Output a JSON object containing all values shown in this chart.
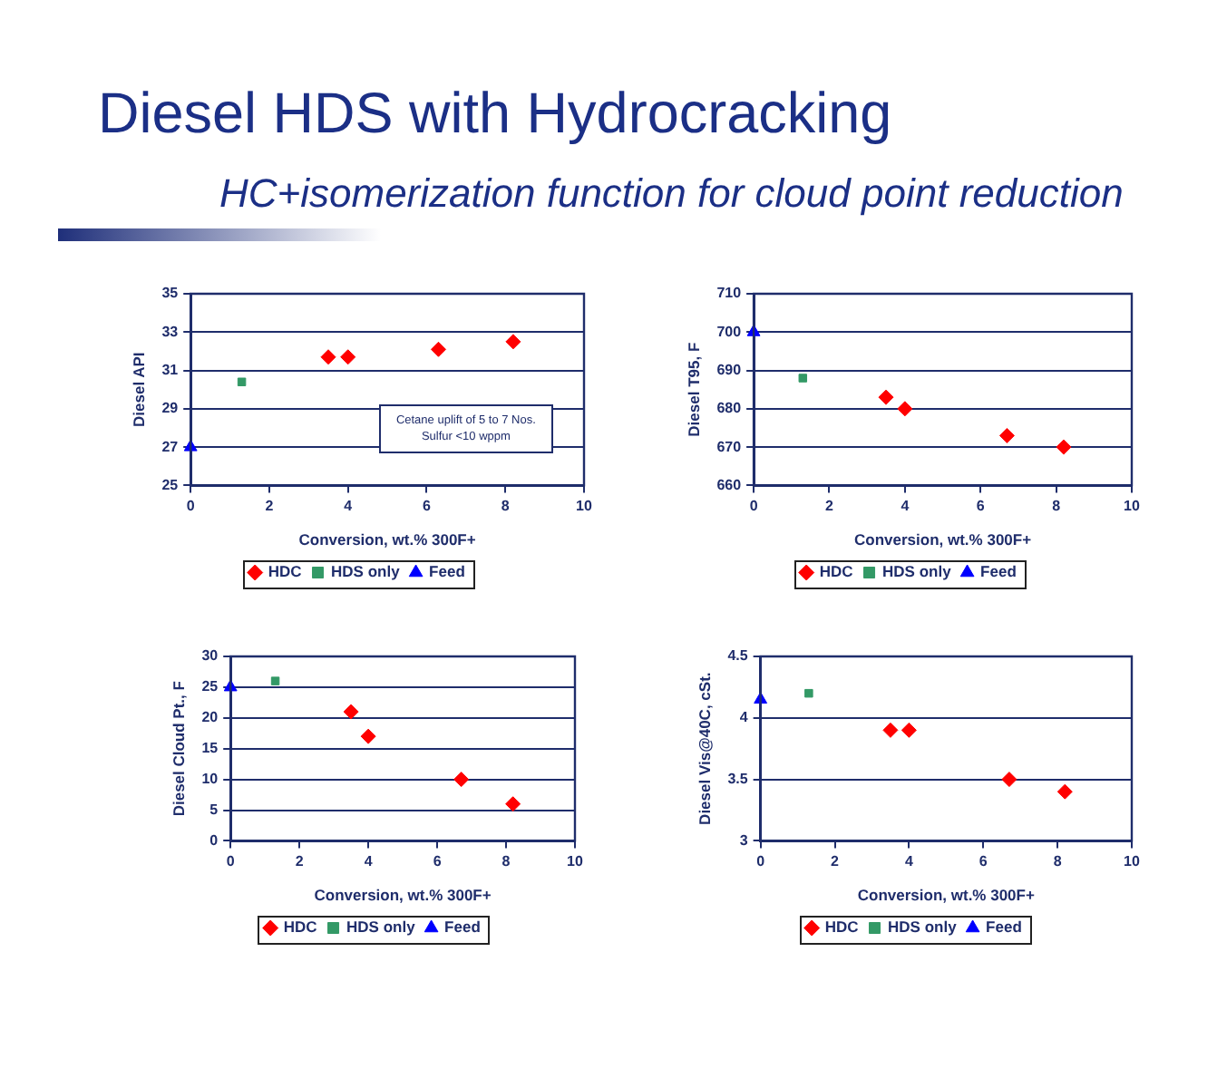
{
  "chart_data": [
    {
      "type": "other",
      "title": "Diesel HDS with Hydrocracking",
      "subtitle": "HC+isomerization function for cloud point reduction"
    },
    {
      "type": "scatter",
      "xlabel": "Conversion, wt.% 300F+",
      "ylabel": "Diesel API",
      "xlim": [
        0,
        10
      ],
      "xticks": [
        0,
        2,
        4,
        6,
        8,
        10
      ],
      "ylim": [
        25,
        35
      ],
      "yticks": [
        25,
        27,
        29,
        31,
        33,
        35
      ],
      "grid": "y",
      "legend": "bottom",
      "annotations": [
        "Cetane uplift of 5 to 7 Nos.\nSulfur <10 wppm"
      ],
      "series": [
        {
          "name": "HDC",
          "color": "#ff0000",
          "marker": "diamond",
          "x": [
            3.5,
            4,
            6.3,
            8.2
          ],
          "values": [
            31.7,
            31.7,
            32.1,
            32.5
          ]
        },
        {
          "name": "HDS only",
          "color": "#339966",
          "marker": "square",
          "x": [
            1.3
          ],
          "values": [
            30.4
          ]
        },
        {
          "name": "Feed",
          "color": "#0000ff",
          "marker": "triangle",
          "x": [
            0
          ],
          "values": [
            27
          ]
        }
      ]
    },
    {
      "type": "scatter",
      "xlabel": "Conversion, wt.% 300F+",
      "ylabel": "Diesel T95, F",
      "xlim": [
        0,
        10
      ],
      "xticks": [
        0,
        2,
        4,
        6,
        8,
        10
      ],
      "ylim": [
        660,
        710
      ],
      "yticks": [
        660,
        670,
        680,
        690,
        700,
        710
      ],
      "grid": "y",
      "legend": "bottom",
      "series": [
        {
          "name": "HDC",
          "color": "#ff0000",
          "marker": "diamond",
          "x": [
            3.5,
            4,
            6.7,
            8.2
          ],
          "values": [
            683,
            680,
            673,
            670
          ]
        },
        {
          "name": "HDS only",
          "color": "#339966",
          "marker": "square",
          "x": [
            1.3
          ],
          "values": [
            688
          ]
        },
        {
          "name": "Feed",
          "color": "#0000ff",
          "marker": "triangle",
          "x": [
            0
          ],
          "values": [
            700
          ]
        }
      ]
    },
    {
      "type": "scatter",
      "xlabel": "Conversion, wt.% 300F+",
      "ylabel": "Diesel Cloud Pt., F",
      "xlim": [
        0,
        10
      ],
      "xticks": [
        0,
        2,
        4,
        6,
        8,
        10
      ],
      "ylim": [
        0,
        30
      ],
      "yticks": [
        0,
        5,
        10,
        15,
        20,
        25,
        30
      ],
      "grid": "y",
      "legend": "bottom",
      "series": [
        {
          "name": "HDC",
          "color": "#ff0000",
          "marker": "diamond",
          "x": [
            3.5,
            4,
            6.7,
            8.2
          ],
          "values": [
            21,
            17,
            10,
            6
          ]
        },
        {
          "name": "HDS only",
          "color": "#339966",
          "marker": "square",
          "x": [
            1.3
          ],
          "values": [
            26
          ]
        },
        {
          "name": "Feed",
          "color": "#0000ff",
          "marker": "triangle",
          "x": [
            0
          ],
          "values": [
            25
          ]
        }
      ]
    },
    {
      "type": "scatter",
      "xlabel": "Conversion, wt.% 300F+",
      "ylabel": "Diesel Vis@40C, cSt.",
      "xlim": [
        0,
        10
      ],
      "xticks": [
        0,
        2,
        4,
        6,
        8,
        10
      ],
      "ylim": [
        3,
        4.5
      ],
      "yticks": [
        3,
        3.5,
        4,
        4.5
      ],
      "grid": "y",
      "legend": "bottom",
      "series": [
        {
          "name": "HDC",
          "color": "#ff0000",
          "marker": "diamond",
          "x": [
            3.5,
            4,
            6.7,
            8.2
          ],
          "values": [
            3.9,
            3.9,
            3.5,
            3.4
          ]
        },
        {
          "name": "HDS only",
          "color": "#339966",
          "marker": "square",
          "x": [
            1.3
          ],
          "values": [
            4.2
          ]
        },
        {
          "name": "Feed",
          "color": "#0000ff",
          "marker": "triangle",
          "x": [
            0
          ],
          "values": [
            4.15
          ]
        }
      ]
    }
  ]
}
